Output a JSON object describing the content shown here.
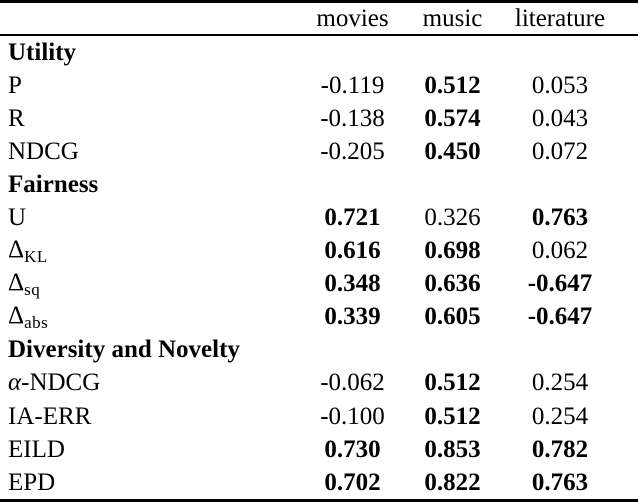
{
  "header": {
    "columns": [
      "movies",
      "music",
      "literature"
    ]
  },
  "sections": [
    {
      "title": "Utility",
      "rows": [
        {
          "label_parts": [
            {
              "t": "P"
            }
          ],
          "values": [
            {
              "v": "-0.119",
              "b": false
            },
            {
              "v": "0.512",
              "b": true
            },
            {
              "v": "0.053",
              "b": false
            }
          ]
        },
        {
          "label_parts": [
            {
              "t": "R"
            }
          ],
          "values": [
            {
              "v": "-0.138",
              "b": false
            },
            {
              "v": "0.574",
              "b": true
            },
            {
              "v": "0.043",
              "b": false
            }
          ]
        },
        {
          "label_parts": [
            {
              "t": "NDCG"
            }
          ],
          "values": [
            {
              "v": "-0.205",
              "b": false
            },
            {
              "v": "0.450",
              "b": true
            },
            {
              "v": "0.072",
              "b": false
            }
          ]
        }
      ]
    },
    {
      "title": "Fairness",
      "rows": [
        {
          "label_parts": [
            {
              "t": "U"
            }
          ],
          "values": [
            {
              "v": "0.721",
              "b": true
            },
            {
              "v": "0.326",
              "b": false
            },
            {
              "v": "0.763",
              "b": true
            }
          ]
        },
        {
          "label_parts": [
            {
              "t": "Δ"
            },
            {
              "t": "KL",
              "sub": true
            }
          ],
          "values": [
            {
              "v": "0.616",
              "b": true
            },
            {
              "v": "0.698",
              "b": true
            },
            {
              "v": "0.062",
              "b": false
            }
          ]
        },
        {
          "label_parts": [
            {
              "t": "Δ"
            },
            {
              "t": "sq",
              "sub": true
            }
          ],
          "values": [
            {
              "v": "0.348",
              "b": true
            },
            {
              "v": "0.636",
              "b": true
            },
            {
              "v": "-0.647",
              "b": true
            }
          ]
        },
        {
          "label_parts": [
            {
              "t": "Δ"
            },
            {
              "t": "abs",
              "sub": true
            }
          ],
          "values": [
            {
              "v": "0.339",
              "b": true
            },
            {
              "v": "0.605",
              "b": true
            },
            {
              "v": "-0.647",
              "b": true
            }
          ]
        }
      ]
    },
    {
      "title": "Diversity and Novelty",
      "rows": [
        {
          "label_parts": [
            {
              "t": "α",
              "italic": true
            },
            {
              "t": "-NDCG"
            }
          ],
          "values": [
            {
              "v": "-0.062",
              "b": false
            },
            {
              "v": "0.512",
              "b": true
            },
            {
              "v": "0.254",
              "b": false
            }
          ]
        },
        {
          "label_parts": [
            {
              "t": "IA-ERR"
            }
          ],
          "values": [
            {
              "v": "-0.100",
              "b": false
            },
            {
              "v": "0.512",
              "b": true
            },
            {
              "v": "0.254",
              "b": false
            }
          ]
        },
        {
          "label_parts": [
            {
              "t": "EILD"
            }
          ],
          "values": [
            {
              "v": "0.730",
              "b": true
            },
            {
              "v": "0.853",
              "b": true
            },
            {
              "v": "0.782",
              "b": true
            }
          ]
        },
        {
          "label_parts": [
            {
              "t": "EPD"
            }
          ],
          "values": [
            {
              "v": "0.702",
              "b": true
            },
            {
              "v": "0.822",
              "b": true
            },
            {
              "v": "0.763",
              "b": true
            }
          ]
        }
      ]
    }
  ],
  "colors": {
    "text": "#000000",
    "background": "#ffffff",
    "rule": "#000000"
  }
}
